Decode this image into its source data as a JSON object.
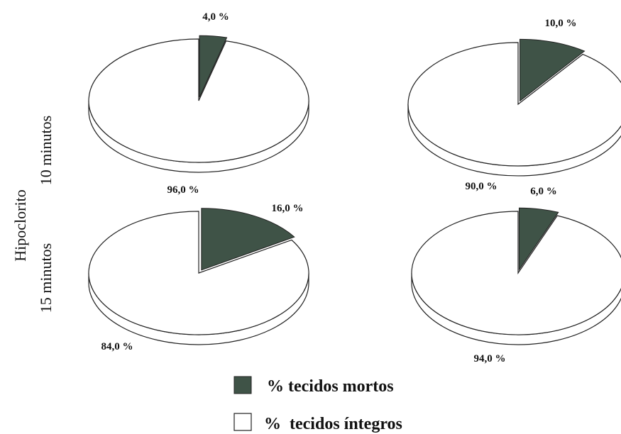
{
  "chart_data": [
    {
      "type": "pie",
      "row_label": "10 minutos",
      "categories": [
        "% tecidos mortos",
        "% tecidos íntegros"
      ],
      "values": [
        4.0,
        96.0
      ],
      "labels": [
        "4,0 %",
        "96,0 %"
      ]
    },
    {
      "type": "pie",
      "row_label": "10 minutos",
      "categories": [
        "% tecidos mortos",
        "% tecidos íntegros"
      ],
      "values": [
        10.0,
        90.0
      ],
      "labels": [
        "10,0 %",
        "90,0 %"
      ]
    },
    {
      "type": "pie",
      "row_label": "15 minutos",
      "categories": [
        "% tecidos mortos",
        "% tecidos íntegros"
      ],
      "values": [
        16.0,
        84.0
      ],
      "labels": [
        "16,0 %",
        "84,0 %"
      ]
    },
    {
      "type": "pie",
      "row_label": "15 minutos",
      "categories": [
        "% tecidos mortos",
        "% tecidos íntegros"
      ],
      "values": [
        6.0,
        94.0
      ],
      "labels": [
        "6,0 %",
        "94,0 %"
      ]
    }
  ],
  "figure": {
    "side_label": "Hipoclorito",
    "row_labels": [
      "10 minutos",
      "15 minutos"
    ]
  },
  "legend": {
    "position": "bottom-center",
    "items": [
      {
        "label": "% tecidos mortos",
        "color": "#3f5347"
      },
      {
        "label": "%  tecidos íntegros",
        "color": "#ffffff"
      }
    ]
  },
  "colors": {
    "dead_tissue": "#3f5347",
    "intact_tissue": "#ffffff",
    "outline": "#222222"
  }
}
